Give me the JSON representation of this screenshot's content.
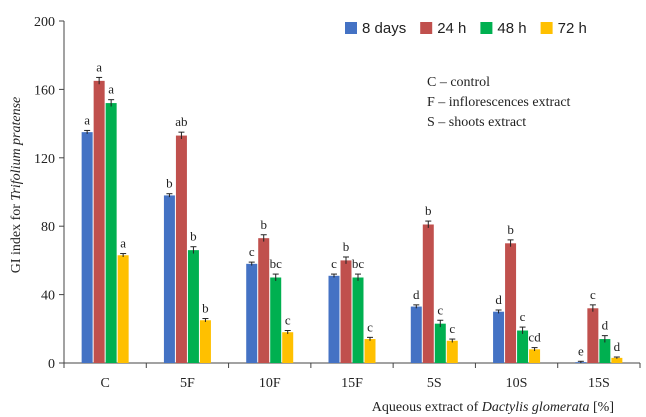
{
  "chart_data": {
    "type": "bar",
    "ylabel_prefix": "GI index for ",
    "ylabel_italic": "Trifolium pratense",
    "xlabel_prefix": "Aqueous extract of ",
    "xlabel_italic": "Dactylis glomerata",
    "xlabel_suffix": " [%]",
    "ylim": [
      0,
      200
    ],
    "yticks": [
      "0",
      "40",
      "80",
      "120",
      "160",
      "200"
    ],
    "grid": false,
    "legend_position": "top-right",
    "categories": [
      "C",
      "5F",
      "10F",
      "15F",
      "5S",
      "10S",
      "15S"
    ],
    "series": [
      {
        "name": "8 days",
        "color": "#4472C4",
        "values": [
          135,
          98,
          58,
          51,
          33,
          30,
          0.5
        ],
        "errors": [
          1,
          1,
          1,
          1,
          1,
          1,
          0.5
        ],
        "labels": [
          "a",
          "b",
          "c",
          "c",
          "d",
          "d",
          "e"
        ]
      },
      {
        "name": "24 h",
        "color": "#C0504D",
        "values": [
          165,
          133,
          73,
          60,
          81,
          70,
          32
        ],
        "errors": [
          2,
          2,
          2,
          2,
          2,
          2,
          2
        ],
        "labels": [
          "a",
          "ab",
          "b",
          "b",
          "b",
          "b",
          "c"
        ]
      },
      {
        "name": "48 h",
        "color": "#00B050",
        "values": [
          152,
          66,
          50,
          50,
          23,
          19,
          14
        ],
        "errors": [
          2,
          2,
          2,
          2,
          2,
          2,
          2
        ],
        "labels": [
          "a",
          "b",
          "bc",
          "bc",
          "c",
          "c",
          "d"
        ]
      },
      {
        "name": "72 h",
        "color": "#FFC000",
        "values": [
          63,
          25,
          18,
          14,
          13,
          8,
          3
        ],
        "errors": [
          1,
          1,
          1,
          1,
          1,
          1,
          0.5
        ],
        "labels": [
          "a",
          "b",
          "c",
          "c",
          "c",
          "cd",
          "d"
        ]
      }
    ],
    "annotations": [
      "C – control",
      "F – inflorescences  extract",
      "S – shoots extract"
    ]
  }
}
